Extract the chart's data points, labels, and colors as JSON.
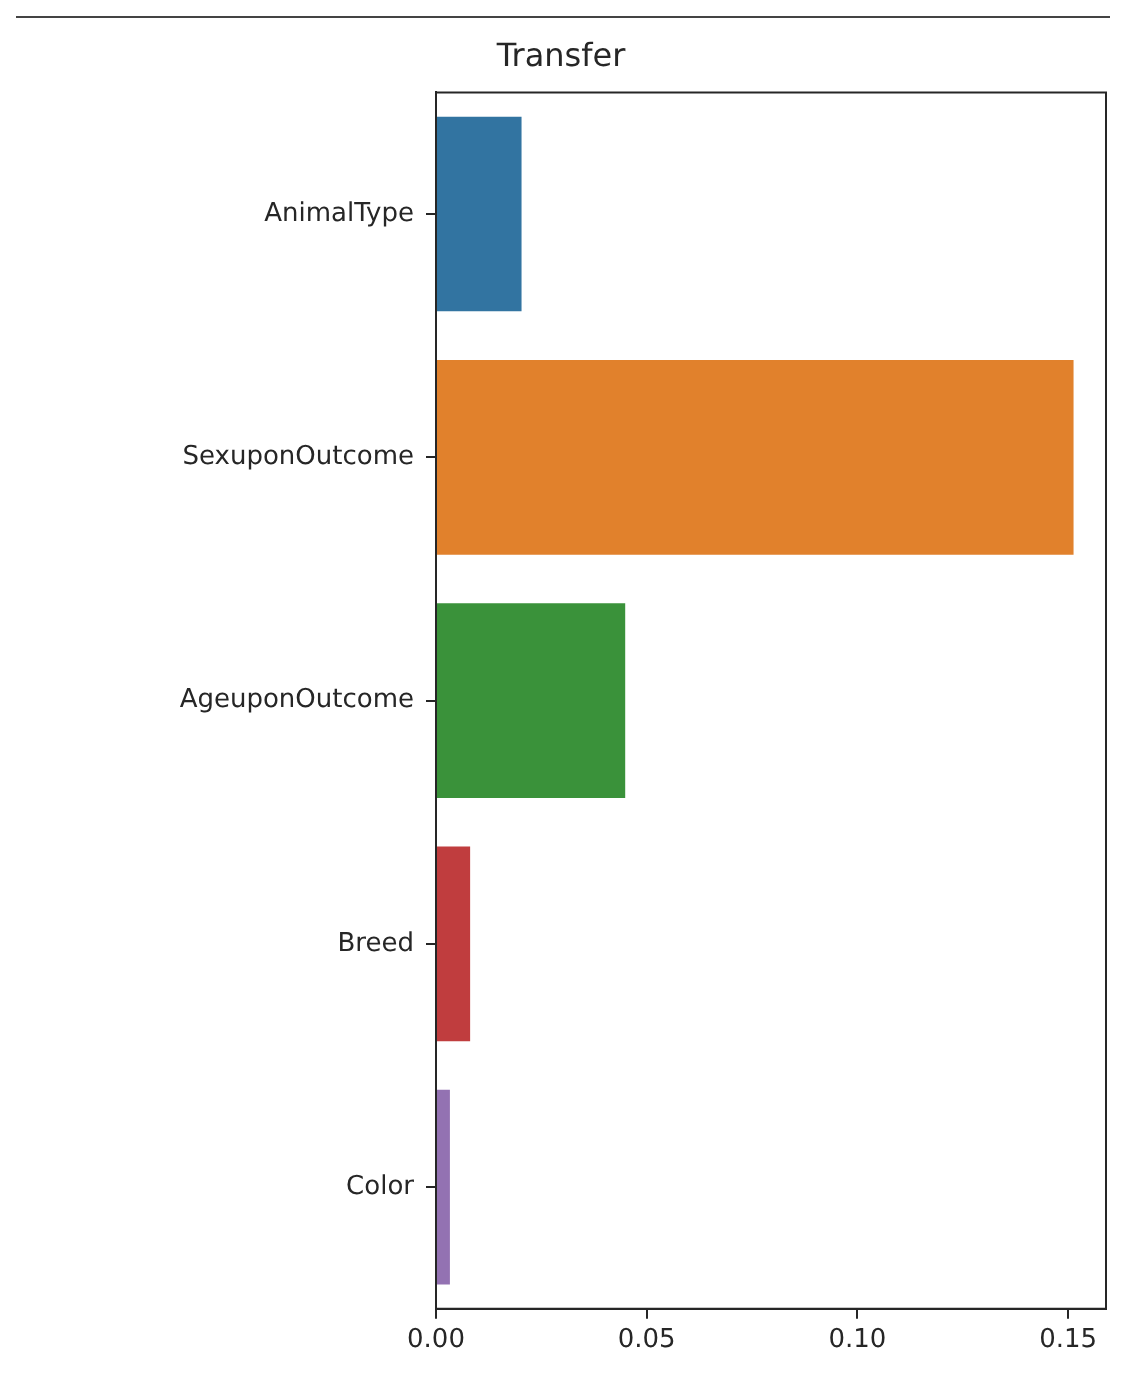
{
  "chart_data": {
    "type": "bar",
    "orientation": "horizontal",
    "title": "Transfer",
    "categories": [
      "AnimalType",
      "SexuponOutcome",
      "AgeuponOutcome",
      "Breed",
      "Color"
    ],
    "values": [
      0.0203,
      0.1513,
      0.0449,
      0.0081,
      0.0033
    ],
    "colors": [
      "#3274a1",
      "#e1812c",
      "#3a923a",
      "#c03d3e",
      "#9372b2"
    ],
    "xlim": [
      0,
      0.159
    ],
    "xticks": [
      {
        "value": 0,
        "label": "0.00"
      },
      {
        "value": 0.05,
        "label": "0.05"
      },
      {
        "value": 0.1,
        "label": "0.10"
      },
      {
        "value": 0.15,
        "label": "0.15"
      }
    ],
    "grid": false,
    "legend": false
  }
}
